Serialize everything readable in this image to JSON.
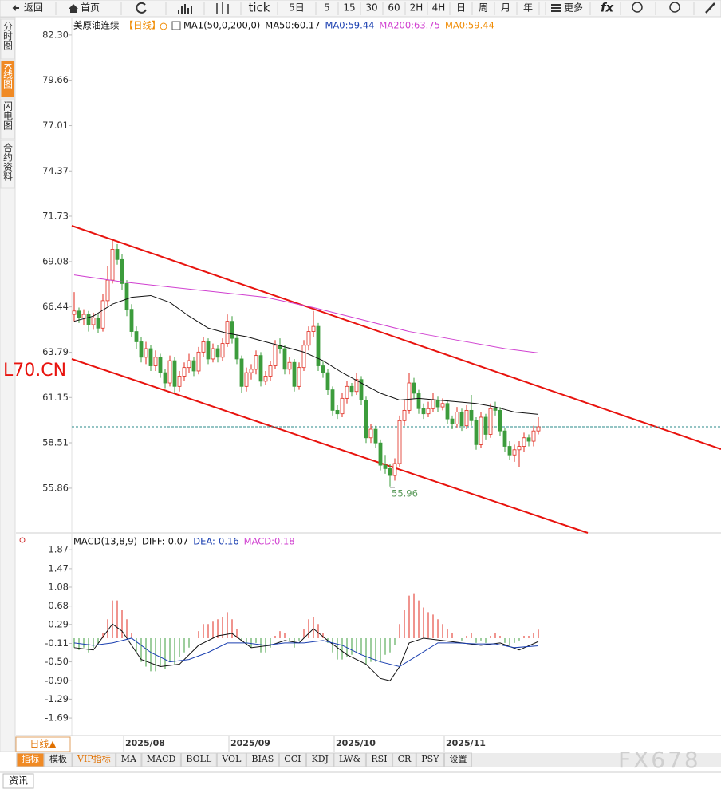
{
  "toolbar": {
    "back": "返回",
    "home": "首页",
    "tick": "tick",
    "periods": [
      "5日",
      "5",
      "15",
      "30",
      "60",
      "2H",
      "4H",
      "日",
      "周",
      "月",
      "年"
    ],
    "more": "更多"
  },
  "side_tabs": [
    "分时图",
    "K线图",
    "闪电图",
    "合约资料"
  ],
  "symbol_label": "L70.CN",
  "period_button": "日线▲",
  "bottom_tabs": [
    "指标",
    "模板",
    "VIP指标",
    "MA",
    "MACD",
    "BOLL",
    "VOL",
    "BIAS",
    "CCI",
    "KDJ",
    "LW&",
    "RSI",
    "CR",
    "PSY",
    "设置"
  ],
  "news_tab": "资讯",
  "watermark": "FX678",
  "chart_data": [
    {
      "type": "candlestick",
      "title": "美原油连续",
      "period": "【日线】",
      "indicator_legend": [
        {
          "text": "MA1(50,0,200,0)",
          "color": "#111111"
        },
        {
          "text": "MA50:60.17",
          "color": "#111111"
        },
        {
          "text": "MA0:59.44",
          "color": "#1a3fb0"
        },
        {
          "text": "MA200:63.75",
          "color": "#d040d0"
        },
        {
          "text": "MA0:59.44",
          "color": "#f08a00"
        }
      ],
      "categories": [
        null,
        null,
        null,
        null,
        null,
        null,
        null,
        null,
        null,
        null,
        "2025/08",
        null,
        null,
        null,
        null,
        null,
        null,
        null,
        null,
        null,
        null,
        null,
        null,
        null,
        null,
        null,
        null,
        null,
        null,
        null,
        null,
        null,
        "2025/09",
        null,
        null,
        null,
        null,
        null,
        null,
        null,
        null,
        null,
        null,
        null,
        null,
        null,
        null,
        null,
        null,
        null,
        null,
        null,
        null,
        null,
        "2025/10",
        null,
        null,
        null,
        null,
        null,
        null,
        null,
        null,
        null,
        null,
        null,
        null,
        null,
        null,
        null,
        null,
        null,
        null,
        null,
        null,
        null,
        null,
        "2025/11",
        null,
        null,
        null,
        null,
        null,
        null,
        null,
        null,
        null,
        null,
        null,
        null,
        null,
        null,
        null,
        null,
        null,
        null,
        null,
        null,
        null
      ],
      "ohlc": [
        [
          66.0,
          67.3,
          65.6,
          66.2
        ],
        [
          66.2,
          66.4,
          65.5,
          65.8
        ],
        [
          65.8,
          66.3,
          65.4,
          66.0
        ],
        [
          66.0,
          66.2,
          65.0,
          65.4
        ],
        [
          65.4,
          66.1,
          65.1,
          65.8
        ],
        [
          65.8,
          66.0,
          64.9,
          65.2
        ],
        [
          65.2,
          67.2,
          65.0,
          66.8
        ],
        [
          66.8,
          68.8,
          66.5,
          68.0
        ],
        [
          68.0,
          70.3,
          67.8,
          69.8
        ],
        [
          69.8,
          70.1,
          68.9,
          69.2
        ],
        [
          69.2,
          69.5,
          67.4,
          67.8
        ],
        [
          67.8,
          68.0,
          65.9,
          66.3
        ],
        [
          66.3,
          66.6,
          64.7,
          65.0
        ],
        [
          65.0,
          65.3,
          64.0,
          64.4
        ],
        [
          64.4,
          64.7,
          63.2,
          63.5
        ],
        [
          63.5,
          64.4,
          63.1,
          64.0
        ],
        [
          64.0,
          64.2,
          62.7,
          63.0
        ],
        [
          63.0,
          63.9,
          62.7,
          63.5
        ],
        [
          63.5,
          63.7,
          62.3,
          62.6
        ],
        [
          62.6,
          62.8,
          61.7,
          62.0
        ],
        [
          62.0,
          63.6,
          61.8,
          63.3
        ],
        [
          63.3,
          63.5,
          61.4,
          61.8
        ],
        [
          61.8,
          62.7,
          61.5,
          62.4
        ],
        [
          62.4,
          63.2,
          62.1,
          62.9
        ],
        [
          62.9,
          63.7,
          62.6,
          63.3
        ],
        [
          63.3,
          63.5,
          62.4,
          62.7
        ],
        [
          62.7,
          64.1,
          62.5,
          63.8
        ],
        [
          63.8,
          64.7,
          63.5,
          64.4
        ],
        [
          64.4,
          64.6,
          63.1,
          63.4
        ],
        [
          63.4,
          64.3,
          63.2,
          64.0
        ],
        [
          64.0,
          64.2,
          63.2,
          63.5
        ],
        [
          63.5,
          64.6,
          63.3,
          64.3
        ],
        [
          64.3,
          66.0,
          64.1,
          65.6
        ],
        [
          65.6,
          65.9,
          64.3,
          64.6
        ],
        [
          64.6,
          64.8,
          63.1,
          63.4
        ],
        [
          63.4,
          63.6,
          61.4,
          61.8
        ],
        [
          61.8,
          62.9,
          61.5,
          62.6
        ],
        [
          62.6,
          63.1,
          62.2,
          62.8
        ],
        [
          62.8,
          63.9,
          62.5,
          63.6
        ],
        [
          63.6,
          63.8,
          61.8,
          62.1
        ],
        [
          62.1,
          62.7,
          61.9,
          62.4
        ],
        [
          62.4,
          63.3,
          62.1,
          63.0
        ],
        [
          63.0,
          64.5,
          62.8,
          64.2
        ],
        [
          64.2,
          64.6,
          63.7,
          64.0
        ],
        [
          64.0,
          64.2,
          62.5,
          62.8
        ],
        [
          62.8,
          63.5,
          62.5,
          63.2
        ],
        [
          63.2,
          63.4,
          61.5,
          61.8
        ],
        [
          61.8,
          63.2,
          61.6,
          62.9
        ],
        [
          62.9,
          64.5,
          62.7,
          64.2
        ],
        [
          64.2,
          65.3,
          63.9,
          65.0
        ],
        [
          65.0,
          66.2,
          64.7,
          65.3
        ],
        [
          65.3,
          65.5,
          62.7,
          63.0
        ],
        [
          63.0,
          63.3,
          62.3,
          62.6
        ],
        [
          62.6,
          62.8,
          61.3,
          61.6
        ],
        [
          61.6,
          61.8,
          60.1,
          60.4
        ],
        [
          60.4,
          60.7,
          59.9,
          60.2
        ],
        [
          60.2,
          61.4,
          60.0,
          61.1
        ],
        [
          61.1,
          62.1,
          60.8,
          61.8
        ],
        [
          61.8,
          62.0,
          61.2,
          61.5
        ],
        [
          61.5,
          62.6,
          61.3,
          62.2
        ],
        [
          62.2,
          62.4,
          60.7,
          61.0
        ],
        [
          61.0,
          61.2,
          58.5,
          58.8
        ],
        [
          58.8,
          59.6,
          58.5,
          59.3
        ],
        [
          59.3,
          59.5,
          58.2,
          58.5
        ],
        [
          58.5,
          58.7,
          56.9,
          57.2
        ],
        [
          57.2,
          57.8,
          56.7,
          57.0
        ],
        [
          57.0,
          57.3,
          55.96,
          56.6
        ],
        [
          56.6,
          57.6,
          56.3,
          57.3
        ],
        [
          57.3,
          60.1,
          57.1,
          59.8
        ],
        [
          59.8,
          61.0,
          59.5,
          60.4
        ],
        [
          60.4,
          62.6,
          60.2,
          62.0
        ],
        [
          62.0,
          62.3,
          61.1,
          61.4
        ],
        [
          61.4,
          61.6,
          60.2,
          60.5
        ],
        [
          60.5,
          60.8,
          59.9,
          60.2
        ],
        [
          60.2,
          60.9,
          60.0,
          60.5
        ],
        [
          60.5,
          61.4,
          60.3,
          61.0
        ],
        [
          61.0,
          61.2,
          60.3,
          60.6
        ],
        [
          60.6,
          61.1,
          60.4,
          60.8
        ],
        [
          60.8,
          61.0,
          59.6,
          59.9
        ],
        [
          59.9,
          60.1,
          59.3,
          59.6
        ],
        [
          59.6,
          60.6,
          59.4,
          60.3
        ],
        [
          60.3,
          60.5,
          59.2,
          59.5
        ],
        [
          59.5,
          60.7,
          59.3,
          60.4
        ],
        [
          60.4,
          61.3,
          59.5,
          59.8
        ],
        [
          59.8,
          60.0,
          58.1,
          58.4
        ],
        [
          58.4,
          60.3,
          58.2,
          60.0
        ],
        [
          60.0,
          60.2,
          58.7,
          59.0
        ],
        [
          59.0,
          60.8,
          58.8,
          60.5
        ],
        [
          60.5,
          60.9,
          60.1,
          60.4
        ],
        [
          60.4,
          60.6,
          58.9,
          59.2
        ],
        [
          59.2,
          59.4,
          58.0,
          58.3
        ],
        [
          58.3,
          58.6,
          57.5,
          57.8
        ],
        [
          57.8,
          58.4,
          57.4,
          58.1
        ],
        [
          58.1,
          58.6,
          57.1,
          58.3
        ],
        [
          58.3,
          59.1,
          58.0,
          58.8
        ],
        [
          58.8,
          59.0,
          58.3,
          58.6
        ],
        [
          58.6,
          59.5,
          58.3,
          59.2
        ],
        [
          59.2,
          60.0,
          59.0,
          59.44
        ]
      ],
      "up_color": "#e02a1e",
      "down_color": "#3c9c3c",
      "series": [
        {
          "name": "MA50",
          "color": "#111111",
          "x": [
            0,
            4,
            8,
            12,
            16,
            20,
            24,
            28,
            32,
            36,
            40,
            44,
            48,
            52,
            56,
            60,
            64,
            68,
            72,
            76,
            80,
            84,
            88,
            92,
            97
          ],
          "values": [
            65.6,
            65.9,
            66.6,
            67.0,
            67.1,
            66.7,
            65.9,
            65.2,
            64.9,
            64.7,
            64.4,
            64.1,
            63.8,
            63.3,
            62.6,
            62.0,
            61.4,
            61.0,
            61.1,
            61.0,
            60.9,
            60.8,
            60.6,
            60.3,
            60.17
          ]
        },
        {
          "name": "MA200",
          "color": "#d040d0",
          "x": [
            0,
            10,
            20,
            30,
            40,
            50,
            60,
            70,
            80,
            90,
            97
          ],
          "values": [
            68.3,
            67.9,
            67.6,
            67.3,
            67.0,
            66.4,
            65.7,
            65.0,
            64.5,
            64.0,
            63.75
          ]
        }
      ],
      "reference_line": 59.44,
      "reference_color": "#2a8a8a",
      "ylim": [
        53.25,
        83.04
      ],
      "yticks": [
        {
          "value": 82.3,
          "label": "82.30"
        },
        79.66,
        77.01,
        74.37,
        71.73,
        69.08,
        66.44,
        63.79,
        61.15,
        58.51,
        55.86
      ],
      "grid": false
    },
    {
      "type": "macd",
      "legend": [
        {
          "text": "MACD(13,8,9)",
          "color": "#111111"
        },
        {
          "text": "DIFF:-0.07",
          "color": "#111111"
        },
        {
          "text": "DEA:-0.16",
          "color": "#1a3fb0"
        },
        {
          "text": "MACD:0.18",
          "color": "#d040d0"
        }
      ],
      "histogram": [
        -0.2,
        -0.25,
        -0.2,
        -0.3,
        -0.2,
        -0.15,
        0.1,
        0.4,
        0.8,
        0.8,
        0.6,
        0.4,
        0.1,
        -0.3,
        -0.5,
        -0.6,
        -0.7,
        -0.7,
        -0.6,
        -0.65,
        -0.5,
        -0.55,
        -0.4,
        -0.3,
        -0.2,
        0.0,
        0.15,
        0.3,
        0.3,
        0.35,
        0.4,
        0.45,
        0.55,
        0.4,
        0.2,
        -0.05,
        -0.15,
        -0.2,
        -0.1,
        -0.3,
        -0.3,
        -0.2,
        0.05,
        0.15,
        0.1,
        -0.05,
        -0.2,
        -0.05,
        0.2,
        0.4,
        0.45,
        0.3,
        0.1,
        -0.1,
        -0.3,
        -0.45,
        -0.45,
        -0.4,
        -0.35,
        -0.3,
        -0.35,
        -0.55,
        -0.5,
        -0.5,
        -0.5,
        -0.35,
        -0.3,
        -0.15,
        0.3,
        0.6,
        0.9,
        0.95,
        0.8,
        0.65,
        0.55,
        0.5,
        0.4,
        0.3,
        0.2,
        0.1,
        0.0,
        -0.05,
        0.05,
        0.1,
        -0.1,
        -0.05,
        -0.1,
        0.05,
        0.1,
        0.05,
        -0.1,
        -0.15,
        -0.1,
        -0.05,
        0.05,
        0.05,
        0.1,
        0.18
      ],
      "up_color": "#e02a1e",
      "down_color": "#3c9c3c",
      "series": [
        {
          "name": "DIFF",
          "color": "#111111",
          "x": [
            0,
            4,
            8,
            10,
            14,
            18,
            22,
            26,
            30,
            33,
            37,
            41,
            44,
            47,
            50,
            53,
            57,
            61,
            64,
            66,
            68,
            70,
            73,
            77,
            81,
            85,
            89,
            93,
            97
          ],
          "values": [
            -0.2,
            -0.25,
            0.3,
            0.15,
            -0.45,
            -0.6,
            -0.55,
            -0.15,
            0.05,
            0.1,
            -0.2,
            -0.15,
            -0.05,
            -0.1,
            0.2,
            -0.05,
            -0.35,
            -0.55,
            -0.85,
            -0.9,
            -0.6,
            -0.1,
            0.0,
            -0.05,
            -0.1,
            -0.15,
            -0.1,
            -0.25,
            -0.07
          ]
        },
        {
          "name": "DEA",
          "color": "#1a3fb0",
          "x": [
            0,
            4,
            8,
            12,
            16,
            20,
            24,
            28,
            32,
            36,
            40,
            44,
            48,
            52,
            56,
            60,
            64,
            68,
            72,
            76,
            80,
            84,
            88,
            92,
            97
          ],
          "values": [
            -0.1,
            -0.15,
            -0.1,
            0.0,
            -0.3,
            -0.5,
            -0.45,
            -0.3,
            -0.1,
            -0.1,
            -0.15,
            -0.1,
            -0.1,
            -0.05,
            -0.15,
            -0.35,
            -0.5,
            -0.6,
            -0.35,
            -0.1,
            -0.1,
            -0.12,
            -0.12,
            -0.2,
            -0.16
          ]
        }
      ],
      "ylim": [
        -2.06,
        2.16
      ],
      "yticks": [
        1.87,
        1.47,
        1.08,
        0.68,
        0.29,
        -0.11,
        {
          "value": -0.5,
          "label": "-0.50"
        },
        {
          "value": -0.9,
          "label": "-0.90"
        },
        -1.29,
        -1.69
      ],
      "grid": false
    }
  ]
}
